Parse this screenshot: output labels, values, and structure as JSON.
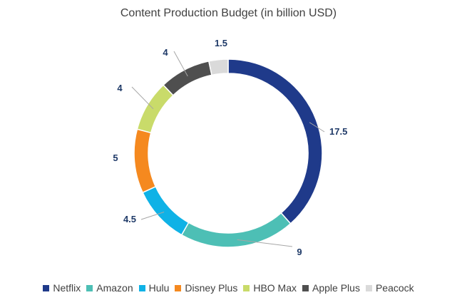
{
  "chart_data": {
    "type": "pie",
    "subtype": "donut",
    "title": "Content Production Budget (in billion USD)",
    "categories": [
      "Netflix",
      "Amazon",
      "Hulu",
      "Disney Plus",
      "HBO Max",
      "Apple Plus",
      "Peacock"
    ],
    "values": [
      17.5,
      9,
      4.5,
      5,
      4,
      4,
      1.5
    ],
    "data_labels": [
      "17.5",
      "9",
      "4.5",
      "5",
      "4",
      "4",
      "1.5"
    ],
    "colors": [
      "#1f3a8a",
      "#4dbfb5",
      "#0fb2e6",
      "#f5891f",
      "#c9db6a",
      "#4f4f4f",
      "#dadada"
    ],
    "legend_position": "bottom"
  }
}
